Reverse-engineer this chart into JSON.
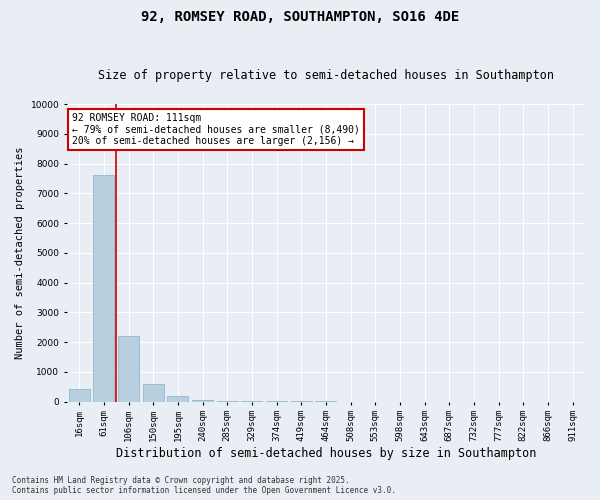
{
  "title": "92, ROMSEY ROAD, SOUTHAMPTON, SO16 4DE",
  "subtitle": "Size of property relative to semi-detached houses in Southampton",
  "xlabel": "Distribution of semi-detached houses by size in Southampton",
  "ylabel": "Number of semi-detached properties",
  "categories": [
    "16sqm",
    "61sqm",
    "106sqm",
    "150sqm",
    "195sqm",
    "240sqm",
    "285sqm",
    "329sqm",
    "374sqm",
    "419sqm",
    "464sqm",
    "508sqm",
    "553sqm",
    "598sqm",
    "643sqm",
    "687sqm",
    "732sqm",
    "777sqm",
    "822sqm",
    "866sqm",
    "911sqm"
  ],
  "values": [
    430,
    7600,
    2200,
    600,
    200,
    60,
    30,
    15,
    8,
    4,
    2,
    1,
    1,
    0,
    0,
    0,
    0,
    0,
    0,
    0,
    0
  ],
  "bar_color": "#b8cfe0",
  "bar_edge_color": "#8aafc8",
  "background_color": "#e8eef4",
  "grid_color": "#ffffff",
  "vline_x": 1.5,
  "vline_color": "#cc0000",
  "annotation_text": "92 ROMSEY ROAD: 111sqm\n← 79% of semi-detached houses are smaller (8,490)\n20% of semi-detached houses are larger (2,156) →",
  "annotation_box_color": "#ffffff",
  "annotation_box_edge_color": "#cc0000",
  "footer": "Contains HM Land Registry data © Crown copyright and database right 2025.\nContains public sector information licensed under the Open Government Licence v3.0.",
  "ylim": [
    0,
    10000
  ],
  "yticks": [
    0,
    1000,
    2000,
    3000,
    4000,
    5000,
    6000,
    7000,
    8000,
    9000,
    10000
  ],
  "title_fontsize": 10,
  "subtitle_fontsize": 8.5,
  "tick_fontsize": 6.5,
  "ylabel_fontsize": 7.5,
  "xlabel_fontsize": 8.5,
  "annotation_fontsize": 7,
  "footer_fontsize": 5.5
}
